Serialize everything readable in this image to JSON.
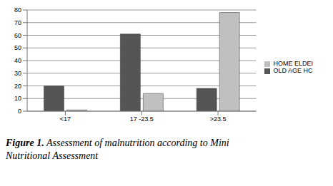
{
  "chart_data": {
    "type": "bar",
    "title": "Figure 1. Assessment of malnutrition according to Mini Nutritional Assessment",
    "categories": [
      "<17",
      "17 -23.5",
      ">23.5"
    ],
    "series": [
      {
        "name": "OLD AGE HC",
        "color": "#555555",
        "values": [
          20,
          61,
          18
        ]
      },
      {
        "name": "HOME ELDEI",
        "color": "#c0c0c0",
        "values": [
          1,
          14,
          78
        ]
      }
    ],
    "ylim": [
      0,
      80
    ],
    "yticks": [
      0,
      10,
      20,
      30,
      40,
      50,
      60,
      70,
      80
    ],
    "grid": true,
    "legend": "right"
  }
}
